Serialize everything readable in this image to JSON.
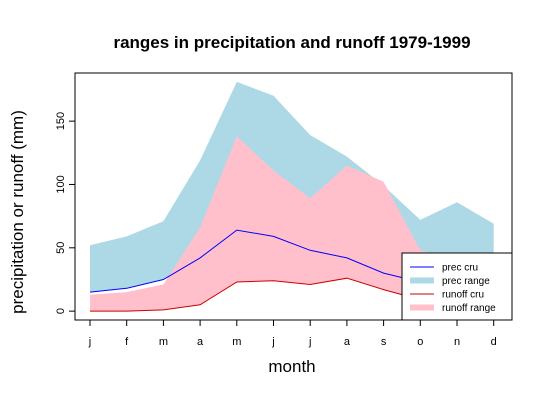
{
  "chart_data": {
    "type": "area",
    "title": "ranges in precipitation and runoff 1979-1999",
    "xlabel": "month",
    "ylabel": "precipitation or runoff (mm)",
    "categories": [
      "j",
      "f",
      "m",
      "a",
      "m",
      "j",
      "j",
      "a",
      "s",
      "o",
      "n",
      "d"
    ],
    "ylim": [
      -7,
      188
    ],
    "y_ticks": [
      0,
      50,
      100,
      150
    ],
    "y_tick_labels": [
      "0",
      "50",
      "100",
      "150"
    ],
    "grid": false,
    "legend_position": "bottom-right",
    "bands": [
      {
        "name": "prec range",
        "color": "#add8e6",
        "lower": [
          15,
          18,
          25,
          42,
          64,
          59,
          48,
          42,
          30,
          23,
          17,
          16
        ],
        "upper": [
          52,
          59,
          71,
          119,
          181,
          170,
          139,
          122,
          99,
          72,
          86,
          69
        ]
      },
      {
        "name": "runoff range",
        "color": "#ffc0cb",
        "lower": [
          0,
          0,
          1,
          5,
          23,
          24,
          21,
          26,
          17,
          9,
          5,
          3
        ],
        "upper": [
          13,
          15,
          21,
          66,
          138,
          111,
          89,
          115,
          102,
          48,
          40,
          30
        ]
      }
    ],
    "series": [
      {
        "name": "prec cru",
        "color": "#0000ff",
        "values": [
          15,
          18,
          25,
          42,
          64,
          59,
          48,
          42,
          30,
          23,
          17,
          16
        ]
      },
      {
        "name": "runoff cru",
        "color": "#cc0000",
        "values": [
          0,
          0,
          1,
          5,
          23,
          24,
          21,
          26,
          17,
          9,
          5,
          3
        ]
      }
    ],
    "legend": [
      {
        "label": "prec cru",
        "color": "#0000ff",
        "style": "line"
      },
      {
        "label": "prec range",
        "color": "#add8e6",
        "style": "thick"
      },
      {
        "label": "runoff cru",
        "color": "#cc0000",
        "style": "line"
      },
      {
        "label": "runoff range",
        "color": "#ffc0cb",
        "style": "thick"
      }
    ]
  }
}
